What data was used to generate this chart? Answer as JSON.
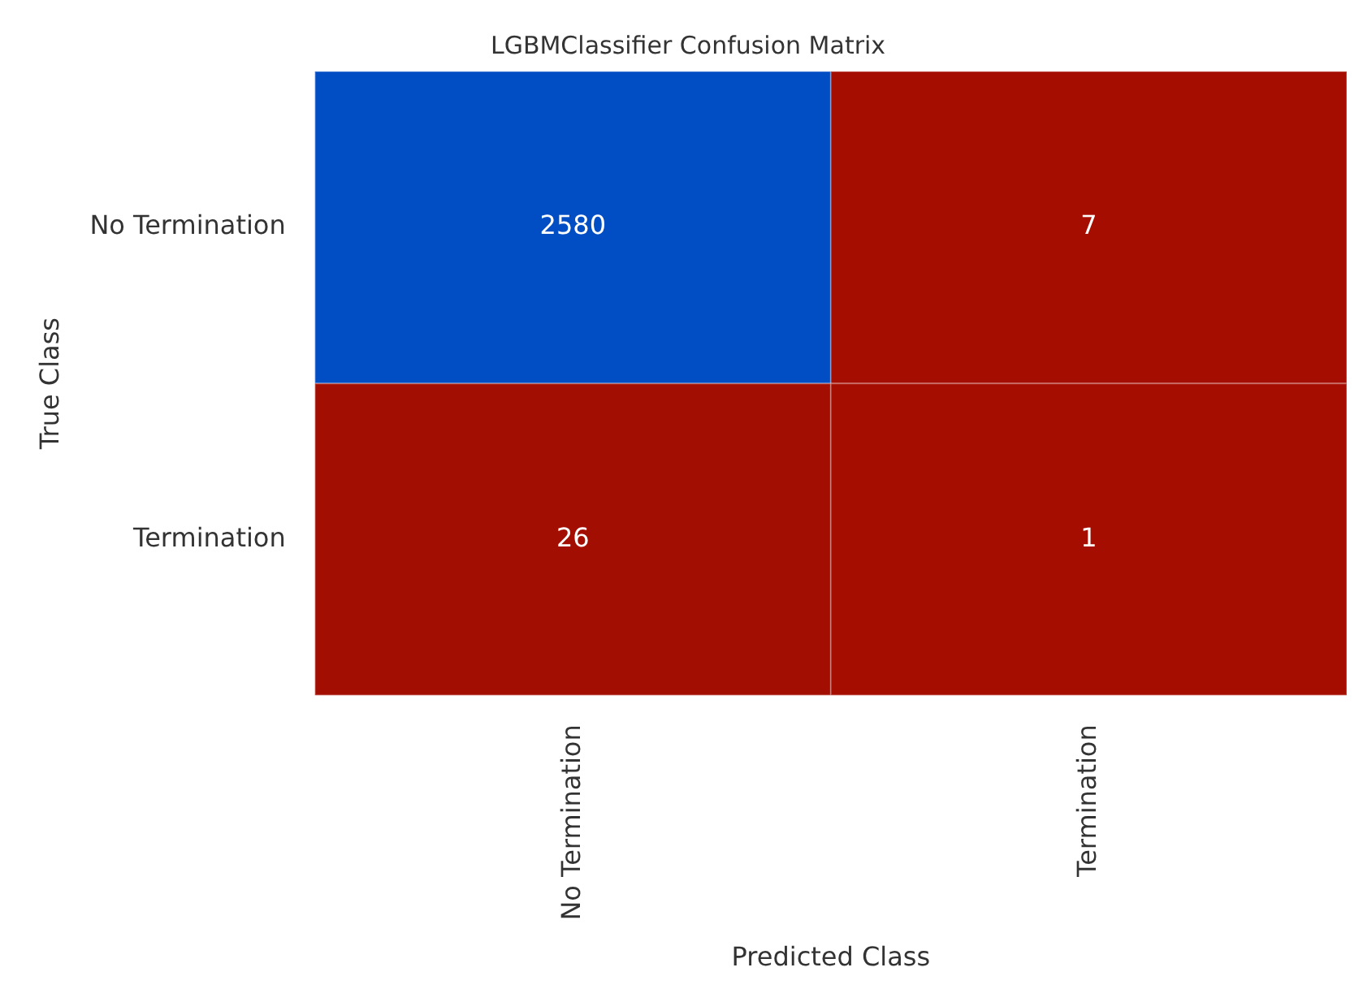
{
  "chart_data": {
    "type": "heatmap",
    "title": "LGBMClassifier Confusion Matrix",
    "xlabel": "Predicted Class",
    "ylabel": "True Class",
    "categories": [
      "No Termination",
      "Termination"
    ],
    "y_categories": [
      "No Termination",
      "Termination"
    ],
    "cells": [
      [
        2580,
        7
      ],
      [
        26,
        1
      ]
    ],
    "colors": [
      "#a50d00",
      "#004dc4"
    ],
    "data_labels": true
  }
}
